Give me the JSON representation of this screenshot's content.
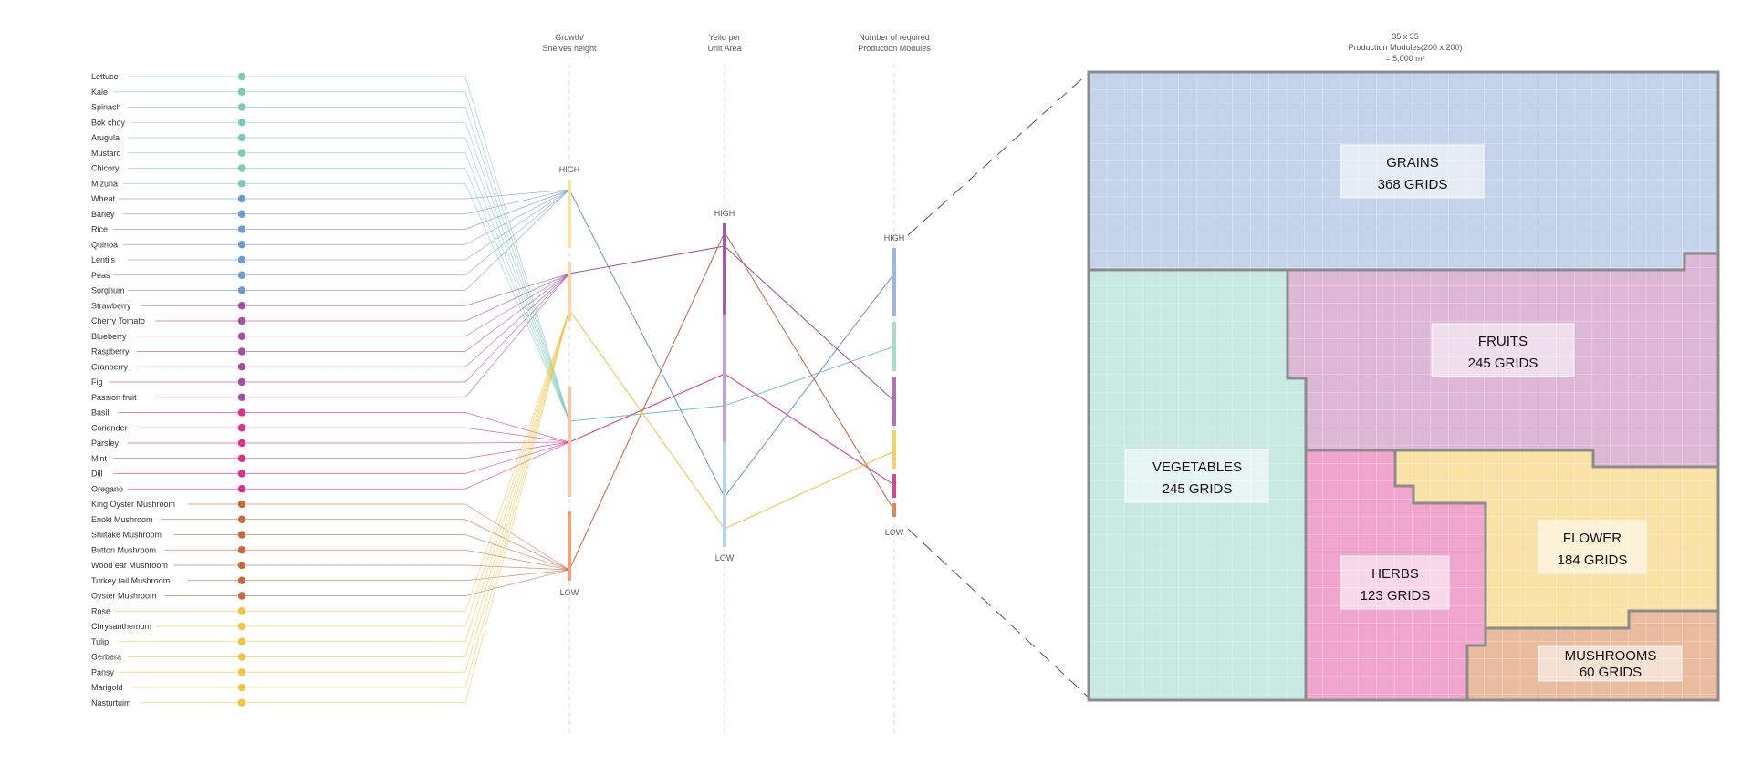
{
  "colors": {
    "vegetables": "#7dc9bd",
    "grains": "#6f9ad3",
    "fruits": "#a5519f",
    "herbs": "#df2f8c",
    "mushrooms": "#c9683f",
    "flower": "#f3c43f",
    "axis_dash": "#d9d9d9",
    "grid_border": "#8c8c8c"
  },
  "crop_groups": [
    {
      "key": "vegetables",
      "items": [
        "Lettuce",
        "Kale",
        "Spinach",
        "Bok choy",
        "Arugula",
        "Mustard",
        "Chicory",
        "Mizuna"
      ]
    },
    {
      "key": "grains",
      "items": [
        "Wheat",
        "Barley",
        "Rice",
        "Quinoa",
        "Lentils",
        "Peas",
        "Sorghum"
      ]
    },
    {
      "key": "fruits",
      "items": [
        "Strawberry",
        "Cherry Tomato",
        "Blueberry",
        "Raspberry",
        "Cranberry",
        "Fig",
        "Passion fruit"
      ]
    },
    {
      "key": "herbs",
      "items": [
        "Basil",
        "Coriander",
        "Parsley",
        "Mint",
        "Dill",
        "Oregano"
      ]
    },
    {
      "key": "mushrooms",
      "items": [
        "King Oyster Mushroom",
        "Enoki Mushroom",
        "Shiitake Mushroom",
        "Button Mushroom",
        "Wood ear Mushroom",
        "Turkey tail Mushroom",
        "Oyster Mushroom"
      ]
    },
    {
      "key": "flower",
      "items": [
        "Rose",
        "Chrysanthemum",
        "Tulip",
        "Gerbera",
        "Pansy",
        "Marigold",
        "Nasturtuim"
      ]
    }
  ],
  "axes": [
    {
      "title_line1": "Growth/",
      "title_line2": "Shelves height",
      "high": "HIGH",
      "low": "LOW"
    },
    {
      "title_line1": "Yeild per",
      "title_line2": "Unit Area",
      "high": "HIGH",
      "low": "LOW"
    },
    {
      "title_line1": "Number of required",
      "title_line2": "Production Modules",
      "high": "HIGH",
      "low": "LOW"
    }
  ],
  "grid": {
    "title_line1": "35 x 35",
    "title_line2": "Production Modules(200 x 200)",
    "title_line3": "= 5,000 m²",
    "zones": {
      "grains": {
        "name": "GRAINS",
        "count": "368 GRIDS"
      },
      "fruits": {
        "name": "FRUITS",
        "count": "245 GRIDS"
      },
      "vegetables": {
        "name": "VEGETABLES",
        "count": "245 GRIDS"
      },
      "flower": {
        "name": "FLOWER",
        "count": "184 GRIDS"
      },
      "herbs": {
        "name": "HERBS",
        "count": "123 GRIDS"
      },
      "mushrooms": {
        "name": "MUSHROOMS",
        "count": "60 GRIDS"
      }
    }
  }
}
